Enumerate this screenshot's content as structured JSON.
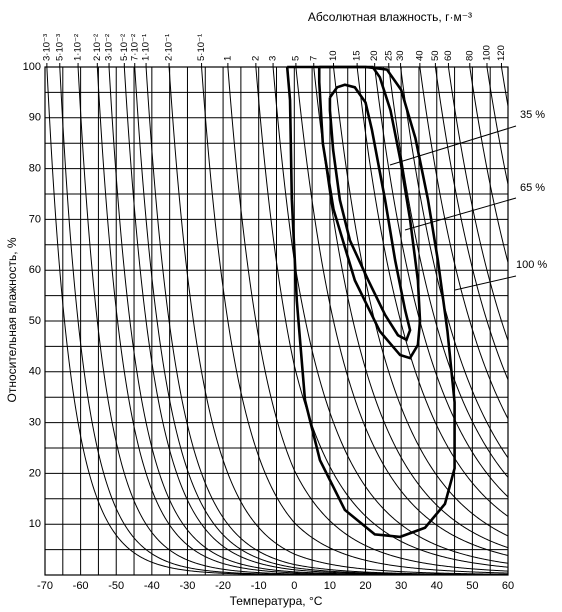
{
  "chart_data": {
    "type": "line",
    "title": "Абсолютная влажность, г·м⁻³",
    "xlabel": "Температура, °C",
    "ylabel": "Относительная влажность, %",
    "xlim": [
      -70,
      60
    ],
    "xticks": [
      -70,
      -60,
      -50,
      -40,
      -30,
      -20,
      -10,
      0,
      10,
      20,
      30,
      40,
      50,
      60
    ],
    "xminorticks": [
      -65,
      -55,
      -45,
      -35,
      -25,
      -15,
      -5,
      5,
      15,
      25,
      35,
      45,
      55
    ],
    "ylim": [
      0,
      100
    ],
    "yticks": [
      10,
      20,
      30,
      40,
      50,
      60,
      70,
      80,
      90,
      100
    ],
    "yminorticks": [
      5,
      15,
      25,
      35,
      45,
      55,
      65,
      75,
      85,
      95
    ],
    "x2ticks": [
      {
        "value": 0.003,
        "label": "3·10⁻³"
      },
      {
        "value": 0.005,
        "label": "5·10⁻³"
      },
      {
        "value": 0.01,
        "label": "1·10⁻²"
      },
      {
        "value": 0.02,
        "label": "2·10⁻²"
      },
      {
        "value": 0.03,
        "label": "3·10⁻²"
      },
      {
        "value": 0.05,
        "label": "5·10⁻²"
      },
      {
        "value": 0.07,
        "label": "7·10⁻²"
      },
      {
        "value": 0.1,
        "label": "1·10⁻¹"
      },
      {
        "value": 0.2,
        "label": "2·10⁻¹"
      },
      {
        "value": 0.5,
        "label": "5·10⁻¹"
      },
      1,
      2,
      3,
      5,
      7,
      10,
      15,
      20,
      25,
      30,
      40,
      50,
      60,
      80,
      100,
      120
    ],
    "grid": true,
    "series": [
      {
        "name": "35 %",
        "color": "#000000",
        "x": [
          10,
          12,
          14.2,
          17,
          20,
          21.8,
          25.5,
          28.3,
          31.1,
          32.5,
          31.5,
          29.1,
          25.5,
          20.7,
          15.6,
          12.8,
          10.9,
          10,
          10
        ],
        "values": [
          94,
          96,
          96.5,
          96,
          93,
          87.6,
          73.8,
          62,
          52.2,
          48.2,
          46.3,
          47.2,
          51.2,
          58.1,
          65.9,
          73.8,
          83.7,
          91.5,
          94
        ]
      },
      {
        "name": "65 %",
        "color": "#000000",
        "x": [
          7,
          7,
          8,
          11,
          17,
          24,
          29.7,
          32.5,
          34.7,
          35.3,
          34.7,
          32.5,
          29.7,
          27,
          24,
          22,
          7
        ],
        "values": [
          100,
          97,
          85,
          72,
          58,
          48,
          43.3,
          42.7,
          45.3,
          50,
          58,
          70,
          82,
          91.5,
          98,
          100,
          100
        ]
      },
      {
        "name": "100 %",
        "color": "#000000",
        "x": [
          -2,
          10,
          20,
          26,
          30,
          34,
          37.5,
          40.3,
          43,
          45,
          45,
          42.3,
          36.7,
          29.7,
          22.6,
          14.2,
          7.2,
          3,
          0.7,
          -0.7,
          -1.2,
          -2
        ],
        "values": [
          100,
          100,
          100,
          99.5,
          95.5,
          86,
          74,
          62,
          48,
          34,
          21,
          14,
          9.3,
          7.5,
          8,
          12.8,
          22.6,
          34.4,
          54,
          74,
          93.5,
          100
        ]
      }
    ]
  }
}
